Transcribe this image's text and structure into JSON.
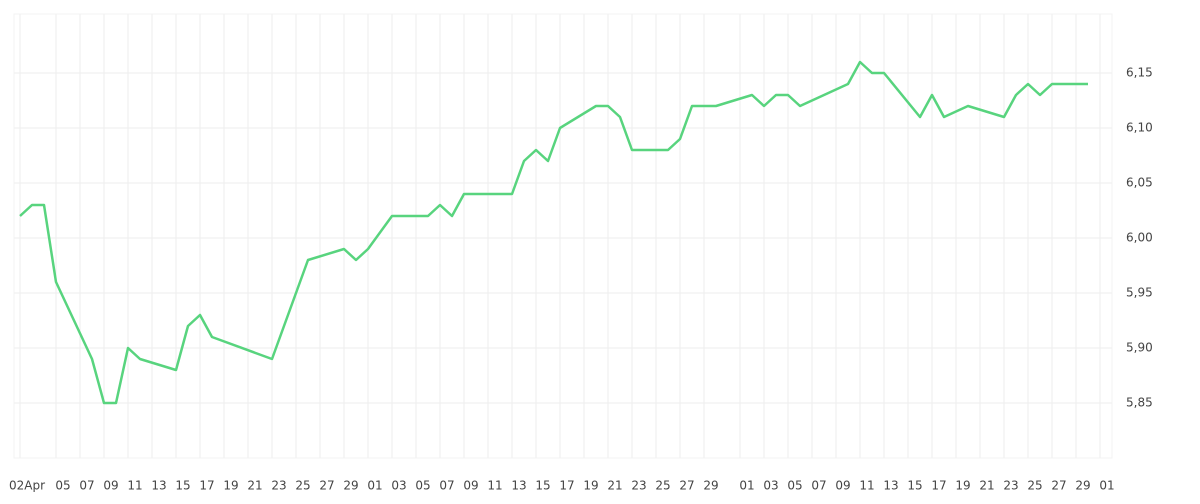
{
  "chart_data": {
    "type": "line",
    "x": [
      0,
      1,
      2,
      3,
      6,
      7,
      8,
      9,
      10,
      13,
      14,
      15,
      16,
      21,
      24,
      27,
      28,
      29,
      31,
      34,
      35,
      36,
      37,
      41,
      42,
      43,
      44,
      45,
      48,
      49,
      50,
      51,
      54,
      55,
      56,
      58,
      61,
      62,
      63,
      64,
      65,
      69,
      70,
      71,
      72,
      75,
      76,
      77,
      79,
      82,
      83,
      84,
      85,
      86,
      89
    ],
    "series": [
      {
        "color": "#58d47e",
        "values": [
          6.02,
          6.03,
          6.03,
          5.96,
          5.89,
          5.85,
          5.85,
          5.9,
          5.89,
          5.88,
          5.92,
          5.93,
          5.91,
          5.89,
          5.98,
          5.99,
          5.98,
          5.99,
          6.02,
          6.02,
          6.03,
          6.02,
          6.04,
          6.04,
          6.07,
          6.08,
          6.07,
          6.1,
          6.12,
          6.12,
          6.11,
          6.08,
          6.08,
          6.09,
          6.12,
          6.12,
          6.13,
          6.12,
          6.13,
          6.13,
          6.12,
          6.14,
          6.16,
          6.15,
          6.15,
          6.11,
          6.13,
          6.11,
          6.12,
          6.11,
          6.13,
          6.14,
          6.13,
          6.14,
          6.14
        ]
      }
    ],
    "xlim": [
      0,
      91
    ],
    "xticks": [
      {
        "value": 0,
        "label": "02Apr"
      },
      {
        "value": 3,
        "label": "05"
      },
      {
        "value": 5,
        "label": "07"
      },
      {
        "value": 7,
        "label": "09"
      },
      {
        "value": 9,
        "label": "11"
      },
      {
        "value": 11,
        "label": "13"
      },
      {
        "value": 13,
        "label": "15"
      },
      {
        "value": 15,
        "label": "17"
      },
      {
        "value": 17,
        "label": "19"
      },
      {
        "value": 19,
        "label": "21"
      },
      {
        "value": 21,
        "label": "23"
      },
      {
        "value": 23,
        "label": "25"
      },
      {
        "value": 25,
        "label": "27"
      },
      {
        "value": 27,
        "label": "29"
      },
      {
        "value": 29,
        "label": "01"
      },
      {
        "value": 31,
        "label": "03"
      },
      {
        "value": 33,
        "label": "05"
      },
      {
        "value": 35,
        "label": "07"
      },
      {
        "value": 37,
        "label": "09"
      },
      {
        "value": 39,
        "label": "11"
      },
      {
        "value": 41,
        "label": "13"
      },
      {
        "value": 43,
        "label": "15"
      },
      {
        "value": 45,
        "label": "17"
      },
      {
        "value": 47,
        "label": "19"
      },
      {
        "value": 49,
        "label": "21"
      },
      {
        "value": 51,
        "label": "23"
      },
      {
        "value": 53,
        "label": "25"
      },
      {
        "value": 55,
        "label": "27"
      },
      {
        "value": 57,
        "label": "29"
      },
      {
        "value": 60,
        "label": "01"
      },
      {
        "value": 62,
        "label": "03"
      },
      {
        "value": 64,
        "label": "05"
      },
      {
        "value": 66,
        "label": "07"
      },
      {
        "value": 68,
        "label": "09"
      },
      {
        "value": 70,
        "label": "11"
      },
      {
        "value": 72,
        "label": "13"
      },
      {
        "value": 74,
        "label": "15"
      },
      {
        "value": 76,
        "label": "17"
      },
      {
        "value": 78,
        "label": "19"
      },
      {
        "value": 80,
        "label": "21"
      },
      {
        "value": 82,
        "label": "23"
      },
      {
        "value": 84,
        "label": "25"
      },
      {
        "value": 86,
        "label": "27"
      },
      {
        "value": 88,
        "label": "29"
      },
      {
        "value": 90,
        "label": "01"
      }
    ],
    "ylim": [
      5.8,
      6.2
    ],
    "yticks": [
      {
        "value": 5.85,
        "label": "5,85"
      },
      {
        "value": 5.9,
        "label": "5,90"
      },
      {
        "value": 5.95,
        "label": "5,95"
      },
      {
        "value": 6.0,
        "label": "6,00"
      },
      {
        "value": 6.05,
        "label": "6,05"
      },
      {
        "value": 6.1,
        "label": "6,10"
      },
      {
        "value": 6.15,
        "label": "6,15"
      }
    ],
    "grid": true
  }
}
